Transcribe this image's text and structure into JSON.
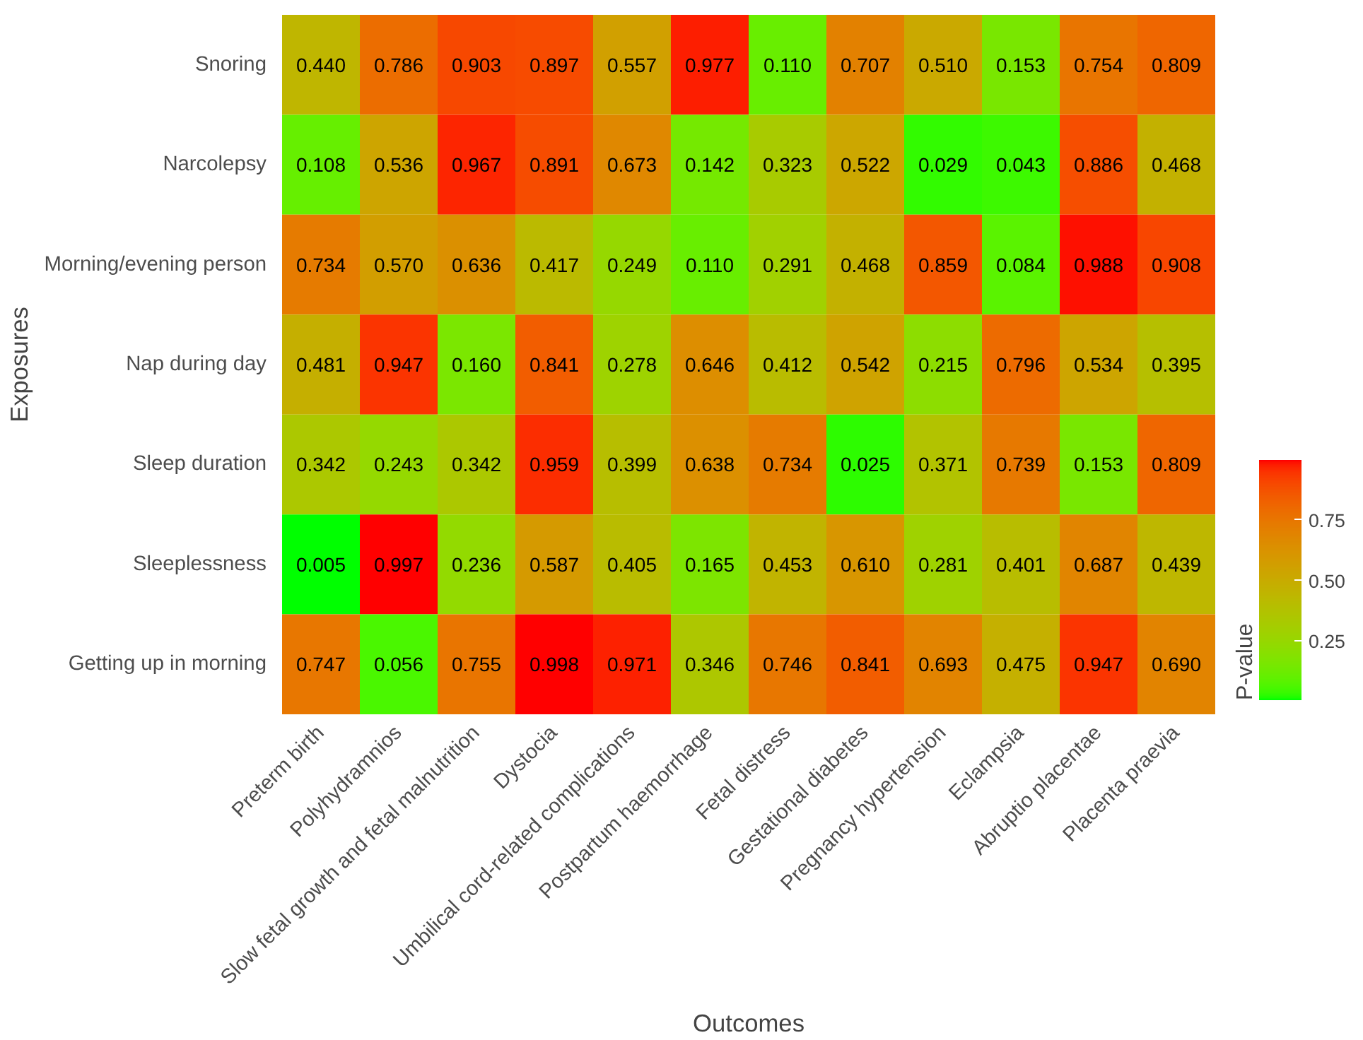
{
  "chart_data": {
    "type": "heatmap",
    "xlabel": "Outcomes",
    "ylabel": "Exposures",
    "clabel": "P-value",
    "categories": [
      "Preterm birth",
      "Polyhydramnios",
      "Slow fetal growth and fetal malnutrition",
      "Dystocia",
      "Umbilical cord-related complications",
      "Postpartum haemorrhage",
      "Fetal distress",
      "Gestational diabetes",
      "Pregnancy hypertension",
      "Eclampsia",
      "Abruptio placentae",
      "Placenta praevia"
    ],
    "y_categories": [
      "Snoring",
      "Narcolepsy",
      "Morning/evening person",
      "Nap during day",
      "Sleep duration",
      "Sleeplessness",
      "Getting up in morning"
    ],
    "cells": [
      [
        0.44,
        0.786,
        0.903,
        0.897,
        0.557,
        0.977,
        0.11,
        0.707,
        0.51,
        0.153,
        0.754,
        0.809
      ],
      [
        0.108,
        0.536,
        0.967,
        0.891,
        0.673,
        0.142,
        0.323,
        0.522,
        0.029,
        0.043,
        0.886,
        0.468
      ],
      [
        0.734,
        0.57,
        0.636,
        0.417,
        0.249,
        0.11,
        0.291,
        0.468,
        0.859,
        0.084,
        0.988,
        0.908
      ],
      [
        0.481,
        0.947,
        0.16,
        0.841,
        0.278,
        0.646,
        0.412,
        0.542,
        0.215,
        0.796,
        0.534,
        0.395
      ],
      [
        0.342,
        0.243,
        0.342,
        0.959,
        0.399,
        0.638,
        0.734,
        0.025,
        0.371,
        0.739,
        0.153,
        0.809
      ],
      [
        0.005,
        0.997,
        0.236,
        0.587,
        0.405,
        0.165,
        0.453,
        0.61,
        0.281,
        0.401,
        0.687,
        0.439
      ],
      [
        0.747,
        0.056,
        0.755,
        0.998,
        0.971,
        0.346,
        0.746,
        0.841,
        0.693,
        0.475,
        0.947,
        0.69
      ]
    ],
    "cell_labels": [
      [
        "0.440",
        "0.786",
        "0.903",
        "0.897",
        "0.557",
        "0.977",
        "0.110",
        "0.707",
        "0.510",
        "0.153",
        "0.754",
        "0.809"
      ],
      [
        "0.108",
        "0.536",
        "0.967",
        "0.891",
        "0.673",
        "0.142",
        "0.323",
        "0.522",
        "0.029",
        "0.043",
        "0.886",
        "0.468"
      ],
      [
        "0.734",
        "0.570",
        "0.636",
        "0.417",
        "0.249",
        "0.110",
        "0.291",
        "0.468",
        "0.859",
        "0.084",
        "0.988",
        "0.908"
      ],
      [
        "0.481",
        "0.947",
        "0.160",
        "0.841",
        "0.278",
        "0.646",
        "0.412",
        "0.542",
        "0.215",
        "0.796",
        "0.534",
        "0.395"
      ],
      [
        "0.342",
        "0.243",
        "0.342",
        "0.959",
        "0.399",
        "0.638",
        "0.734",
        "0.025",
        "0.371",
        "0.739",
        "0.153",
        "0.809"
      ],
      [
        "0.005",
        "0.997",
        "0.236",
        "0.587",
        "0.405",
        "0.165",
        "0.453",
        "0.610",
        "0.281",
        "0.401",
        "0.687",
        "0.439"
      ],
      [
        "0.747",
        "0.056",
        "0.755",
        "0.998",
        "0.971",
        "0.346",
        "0.746",
        "0.841",
        "0.693",
        "0.475",
        "0.947",
        "0.690"
      ]
    ],
    "colors": [
      "#00ff00",
      "#ff0000"
    ],
    "clim": [
      0.005,
      0.998
    ],
    "cticks": [
      0.25,
      {
        "value": 0.5,
        "label": "0.50"
      },
      0.75
    ],
    "grid": false
  }
}
